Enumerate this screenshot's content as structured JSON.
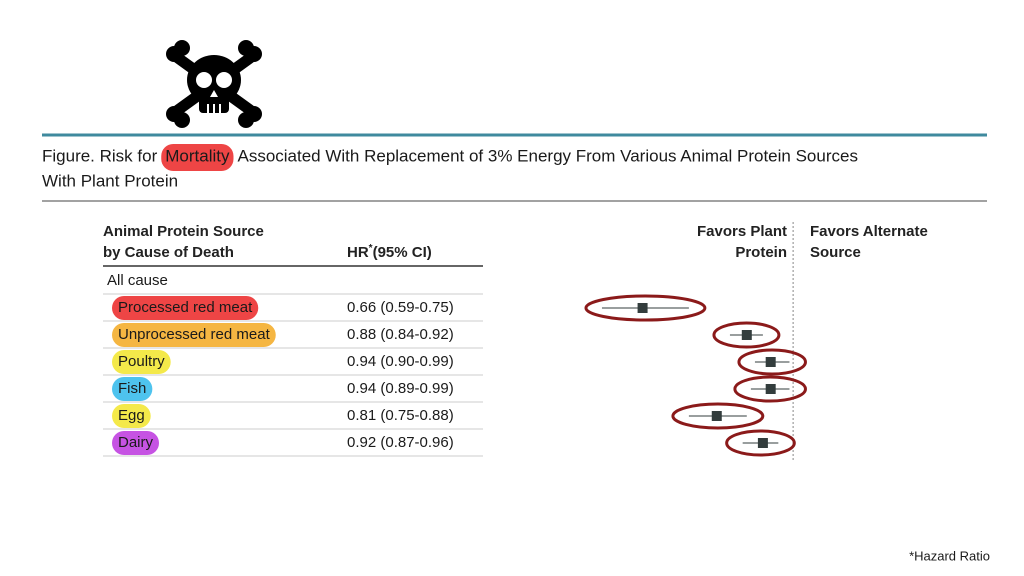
{
  "chart_data": {
    "type": "forest",
    "title_parts": [
      "Figure. Risk for",
      "Mortality",
      "Associated With Replacement of 3% Energy From Various Animal Protein Sources"
    ],
    "title_line2": "With Plant Protein",
    "title_highlight_color": "#ee4545",
    "column_header": [
      "Animal Protein Source",
      "by Cause of Death"
    ],
    "hr_header": {
      "text": "HR",
      "sup": "*",
      "rest": "(95% CI)"
    },
    "group": "All cause",
    "favors_left": [
      "Favors Plant",
      "Protein"
    ],
    "favors_right": [
      "Favors Alternate",
      "Source"
    ],
    "footnote": "*Hazard Ratio",
    "categories": [
      "Processed red meat",
      "Unprocessed red meat",
      "Poultry",
      "Fish",
      "Egg",
      "Dairy"
    ],
    "highlight_colors": [
      "#ee4545",
      "#f5b642",
      "#f4e94a",
      "#4ec3ee",
      "#f4e94a",
      "#c653e3"
    ],
    "values": [
      0.66,
      0.88,
      0.94,
      0.94,
      0.81,
      0.92
    ],
    "lower": [
      0.59,
      0.84,
      0.9,
      0.89,
      0.75,
      0.87
    ],
    "upper": [
      0.75,
      0.92,
      0.99,
      0.99,
      0.88,
      0.96
    ],
    "value_labels": [
      "0.66 (0.59-0.75)",
      "0.88 (0.84-0.92)",
      "0.94 (0.90-0.99)",
      "0.94 (0.89-0.99)",
      "0.81 (0.75-0.88)",
      "0.92 (0.87-0.96)"
    ],
    "xlim": [
      0.5,
      1.5
    ],
    "log_x": true,
    "reference_line": 1,
    "color": "#333d3d"
  }
}
